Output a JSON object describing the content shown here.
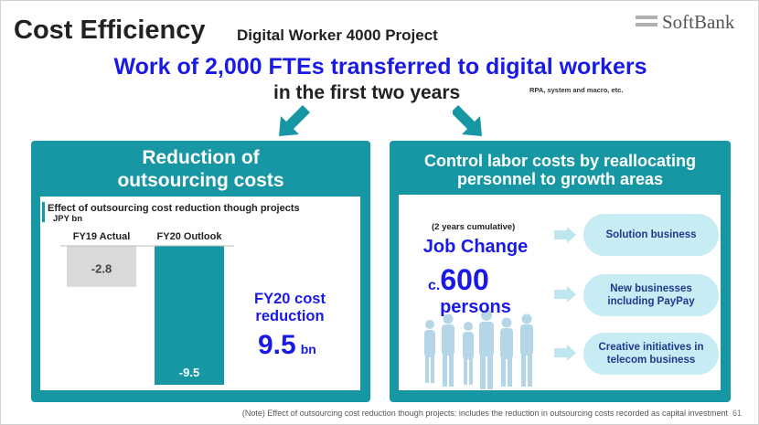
{
  "header": {
    "title": "Cost Efficiency",
    "subtitle": "Digital Worker 4000 Project",
    "logo_text": "SoftBank"
  },
  "headline": {
    "line1": "Work of 2,000 FTEs transferred to digital workers",
    "line2": "in the first two years",
    "note": "RPA, system and macro, etc."
  },
  "left_panel": {
    "title_line1": "Reduction of",
    "title_line2": "outsourcing costs",
    "chart_caption": "Effect of outsourcing cost reduction though projects",
    "chart_unit": "JPY bn",
    "fy20_label_line1": "FY20 cost",
    "fy20_label_line2": "reduction",
    "fy20_value": "9.5",
    "fy20_unit": "bn"
  },
  "chart_data": {
    "type": "bar",
    "title": "Effect of outsourcing cost reduction though projects",
    "ylabel": "JPY bn",
    "categories": [
      "FY19 Actual",
      "FY20 Outlook"
    ],
    "values": [
      -2.8,
      -9.5
    ],
    "value_labels": [
      "-2.8",
      "-9.5"
    ],
    "colors": [
      "#d9d9d9",
      "#1797a3"
    ],
    "ylim": [
      -9.5,
      0
    ],
    "grid": false
  },
  "right_panel": {
    "title_line1": "Control labor costs by reallocating",
    "title_line2": "personnel to growth areas",
    "cumulative": "(2 years cumulative)",
    "job_change": "Job Change",
    "count_prefix": "c.",
    "count": "600",
    "persons": "persons",
    "areas": [
      {
        "line1": "Solution business",
        "line2": ""
      },
      {
        "line1": "New businesses",
        "line2": "including PayPay"
      },
      {
        "line1": "Creative initiatives in",
        "line2": "telecom business"
      }
    ]
  },
  "footer": {
    "note": "(Note) Effect of outsourcing cost reduction though projects: includes the reduction in outsourcing costs recorded as capital investment",
    "page": "61"
  },
  "colors": {
    "accent_teal": "#1797a3",
    "highlight_blue": "#1a1ae6",
    "oval_fill": "#c7ecf3",
    "oval_text": "#1b3a8c",
    "bar_gray": "#d9d9d9"
  }
}
